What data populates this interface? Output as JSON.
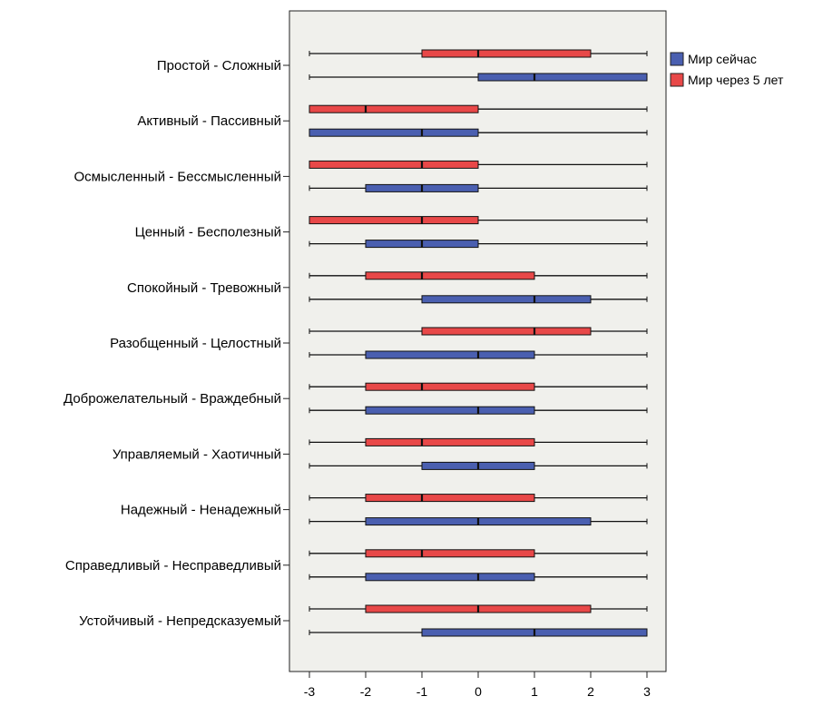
{
  "chart_data": {
    "type": "boxplot",
    "orientation": "horizontal",
    "xlim": [
      -3,
      3
    ],
    "xticks": [
      "-3",
      "-2",
      "-1",
      "0",
      "1",
      "2",
      "3"
    ],
    "legend": {
      "placement": "top-right"
    },
    "series": [
      {
        "name": "Мир сейчас",
        "color": "#4a5fb0"
      },
      {
        "name": "Мир через 5 лет",
        "color": "#e84848"
      }
    ],
    "categories": [
      {
        "label": "Простой - Сложный",
        "boxes": [
          {
            "series": 1,
            "min": -3,
            "q1": -1,
            "median": 0,
            "q3": 2,
            "max": 3
          },
          {
            "series": 0,
            "min": -3,
            "q1": 0,
            "median": 1,
            "q3": 3,
            "max": 3
          }
        ]
      },
      {
        "label": "Активный - Пассивный",
        "boxes": [
          {
            "series": 1,
            "min": -3,
            "q1": -3,
            "median": -2,
            "q3": 0,
            "max": 3
          },
          {
            "series": 0,
            "min": -3,
            "q1": -3,
            "median": -1,
            "q3": 0,
            "max": 3
          }
        ]
      },
      {
        "label": "Осмысленный - Бессмысленный",
        "boxes": [
          {
            "series": 1,
            "min": -3,
            "q1": -3,
            "median": -1,
            "q3": 0,
            "max": 3
          },
          {
            "series": 0,
            "min": -3,
            "q1": -2,
            "median": -1,
            "q3": 0,
            "max": 3
          }
        ]
      },
      {
        "label": "Ценный - Бесполезный",
        "boxes": [
          {
            "series": 1,
            "min": -3,
            "q1": -3,
            "median": -1,
            "q3": 0,
            "max": 3
          },
          {
            "series": 0,
            "min": -3,
            "q1": -2,
            "median": -1,
            "q3": 0,
            "max": 3
          }
        ]
      },
      {
        "label": "Спокойный - Тревожный",
        "boxes": [
          {
            "series": 1,
            "min": -3,
            "q1": -2,
            "median": -1,
            "q3": 1,
            "max": 3
          },
          {
            "series": 0,
            "min": -3,
            "q1": -1,
            "median": 1,
            "q3": 2,
            "max": 3
          }
        ]
      },
      {
        "label": "Разобщенный - Целостный",
        "boxes": [
          {
            "series": 1,
            "min": -3,
            "q1": -1,
            "median": 1,
            "q3": 2,
            "max": 3
          },
          {
            "series": 0,
            "min": -3,
            "q1": -2,
            "median": 0,
            "q3": 1,
            "max": 3
          }
        ]
      },
      {
        "label": "Доброжелательный - Враждебный",
        "boxes": [
          {
            "series": 1,
            "min": -3,
            "q1": -2,
            "median": -1,
            "q3": 1,
            "max": 3
          },
          {
            "series": 0,
            "min": -3,
            "q1": -2,
            "median": 0,
            "q3": 1,
            "max": 3
          }
        ]
      },
      {
        "label": "Управляемый - Хаотичный",
        "boxes": [
          {
            "series": 1,
            "min": -3,
            "q1": -2,
            "median": -1,
            "q3": 1,
            "max": 3
          },
          {
            "series": 0,
            "min": -3,
            "q1": -1,
            "median": 0,
            "q3": 1,
            "max": 3
          }
        ]
      },
      {
        "label": "Надежный - Ненадежный",
        "boxes": [
          {
            "series": 1,
            "min": -3,
            "q1": -2,
            "median": -1,
            "q3": 1,
            "max": 3
          },
          {
            "series": 0,
            "min": -3,
            "q1": -2,
            "median": 0,
            "q3": 2,
            "max": 3
          }
        ]
      },
      {
        "label": "Справедливый - Несправедливый",
        "boxes": [
          {
            "series": 1,
            "min": -3,
            "q1": -2,
            "median": -1,
            "q3": 1,
            "max": 3
          },
          {
            "series": 0,
            "min": -3,
            "q1": -2,
            "median": 0,
            "q3": 1,
            "max": 3
          }
        ]
      },
      {
        "label": "Устойчивый - Непредсказуемый",
        "boxes": [
          {
            "series": 1,
            "min": -3,
            "q1": -2,
            "median": 0,
            "q3": 2,
            "max": 3
          },
          {
            "series": 0,
            "min": -3,
            "q1": -1,
            "median": 1,
            "q3": 3,
            "max": 3
          }
        ]
      }
    ]
  }
}
